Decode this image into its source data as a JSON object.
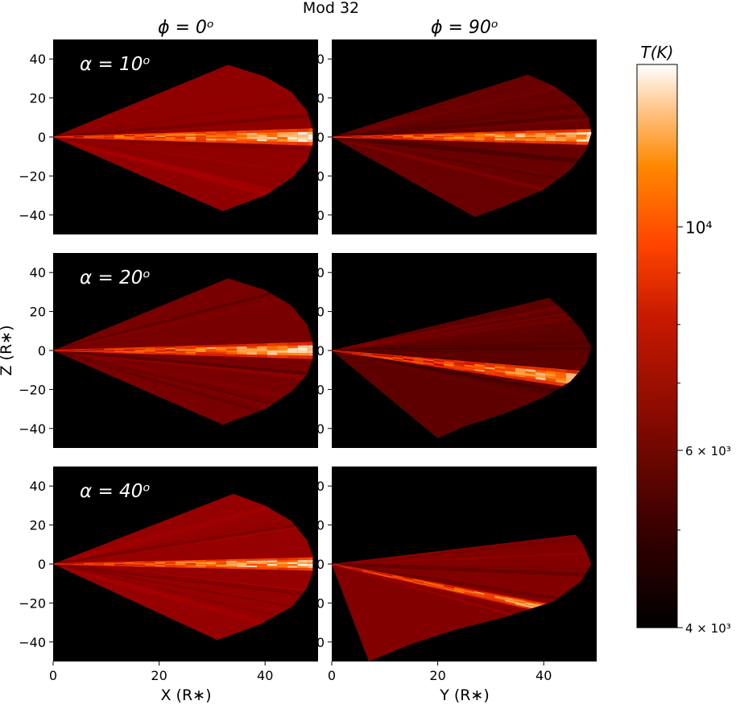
{
  "suptitle": "Mod 32",
  "colorbar": {
    "label": "T(K)",
    "scale": "log",
    "range": [
      4000,
      14500
    ],
    "ticks": [
      {
        "value": 4000,
        "label": "4 × 10³"
      },
      {
        "value": 6000,
        "label": "6 × 10³"
      },
      {
        "value": 10000,
        "label": "10⁴"
      }
    ],
    "colormap": "gist_heat"
  },
  "chart_data": {
    "type": "heatmap",
    "title": "Mod 32",
    "columns": [
      {
        "title": "ϕ = 0ᵒ",
        "xlabel": "X (R∗)"
      },
      {
        "title": "ϕ = 90ᵒ",
        "xlabel": "Y (R∗)"
      }
    ],
    "rows": [
      {
        "label": "α = 10ᵒ"
      },
      {
        "label": "α = 20ᵒ"
      },
      {
        "label": "α = 40ᵒ"
      }
    ],
    "ylabel": "Z (R∗)",
    "xlim": [
      0,
      50
    ],
    "ylim": [
      -50,
      50
    ],
    "xticks": [
      0,
      20,
      40
    ],
    "yticks": [
      40,
      20,
      0,
      -20,
      -40
    ],
    "panels": [
      {
        "row": 0,
        "col": 0,
        "outline": [
          [
            0,
            0
          ],
          [
            33,
            37
          ],
          [
            40,
            31
          ],
          [
            45,
            23
          ],
          [
            48,
            13
          ],
          [
            49,
            4
          ],
          [
            49,
            -4
          ],
          [
            48,
            -12
          ],
          [
            45,
            -21
          ],
          [
            40,
            -30
          ],
          [
            32,
            -38
          ]
        ],
        "disk_y": [
          0,
          0
        ],
        "disk_half": [
          0.3,
          4.5
        ],
        "base_T": 6500,
        "disk_T": 11000
      },
      {
        "row": 0,
        "col": 1,
        "outline": [
          [
            0,
            0
          ],
          [
            37,
            32
          ],
          [
            42,
            26
          ],
          [
            46,
            18
          ],
          [
            48.5,
            10
          ],
          [
            49,
            2
          ],
          [
            48,
            -7
          ],
          [
            45,
            -17
          ],
          [
            40,
            -27
          ],
          [
            33,
            -35
          ],
          [
            27,
            -41
          ]
        ],
        "disk_y": [
          0,
          0
        ],
        "disk_half": [
          0.3,
          4.2
        ],
        "base_T": 5700,
        "disk_T": 10800,
        "disk_slope_y": -0.08
      },
      {
        "row": 1,
        "col": 0,
        "outline": [
          [
            0,
            0
          ],
          [
            33,
            37
          ],
          [
            40,
            31
          ],
          [
            45,
            23
          ],
          [
            48,
            13
          ],
          [
            49,
            4
          ],
          [
            49,
            -4
          ],
          [
            48,
            -12
          ],
          [
            45,
            -21
          ],
          [
            40,
            -30
          ],
          [
            32,
            -38
          ]
        ],
        "disk_y": [
          0,
          0
        ],
        "disk_half": [
          0.3,
          4.5
        ],
        "base_T": 6000,
        "disk_T": 10500
      },
      {
        "row": 1,
        "col": 1,
        "outline": [
          [
            0,
            0
          ],
          [
            41,
            27
          ],
          [
            44,
            20
          ],
          [
            47,
            11
          ],
          [
            49,
            2
          ],
          [
            48,
            -7
          ],
          [
            45,
            -16
          ],
          [
            40,
            -24
          ],
          [
            33,
            -32
          ],
          [
            25,
            -39
          ],
          [
            20,
            -45
          ]
        ],
        "disk_y": [
          0,
          -16
        ],
        "disk_half": [
          0.3,
          5
        ],
        "base_T": 5500,
        "disk_T": 10300
      },
      {
        "row": 2,
        "col": 0,
        "outline": [
          [
            0,
            0
          ],
          [
            34,
            36
          ],
          [
            40,
            30
          ],
          [
            45,
            22
          ],
          [
            48,
            12
          ],
          [
            49,
            4
          ],
          [
            49,
            -4
          ],
          [
            48,
            -12
          ],
          [
            45,
            -22
          ],
          [
            39,
            -31
          ],
          [
            31,
            -39
          ]
        ],
        "disk_y": [
          0,
          0
        ],
        "disk_half": [
          0.3,
          3.5
        ],
        "base_T": 6600,
        "disk_T": 10800
      },
      {
        "row": 2,
        "col": 1,
        "outline": [
          [
            0,
            0
          ],
          [
            46,
            15
          ],
          [
            47.5,
            10
          ],
          [
            49,
            0
          ],
          [
            47,
            -9
          ],
          [
            42,
            -19
          ],
          [
            33,
            -27
          ],
          [
            23,
            -34
          ],
          [
            15,
            -41
          ],
          [
            7,
            -50
          ]
        ],
        "disk_y": [
          0,
          -28
        ],
        "disk_half": [
          0.4,
          3
        ],
        "base_T": 6200,
        "disk_T": 10500
      }
    ]
  }
}
